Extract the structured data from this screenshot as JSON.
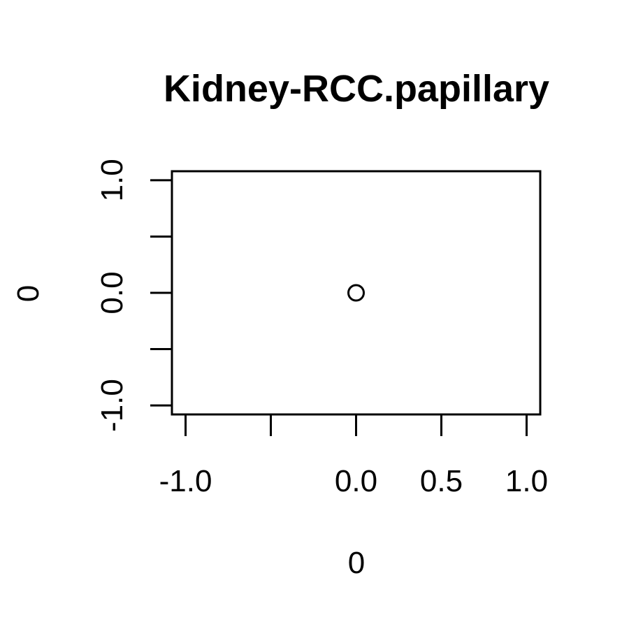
{
  "chart_data": {
    "type": "scatter",
    "title": "Kidney-RCC.papillary",
    "xlabel": "0",
    "ylabel": "0",
    "xlim": [
      -1.08,
      1.08
    ],
    "ylim": [
      -1.08,
      1.08
    ],
    "x_ticks": [
      -1.0,
      -0.5,
      0.0,
      0.5,
      1.0
    ],
    "x_tick_labels": [
      "-1.0",
      "",
      "0.0",
      "0.5",
      "1.0"
    ],
    "y_ticks": [
      -1.0,
      -0.5,
      0.0,
      0.5,
      1.0
    ],
    "y_tick_labels": [
      "-1.0",
      "",
      "0.0",
      "",
      "1.0"
    ],
    "points": [
      {
        "x": 0,
        "y": 0
      }
    ],
    "marker": "open-circle",
    "grid": false,
    "legend": "none",
    "colors": {
      "foreground": "#000000",
      "background": "#ffffff"
    }
  }
}
